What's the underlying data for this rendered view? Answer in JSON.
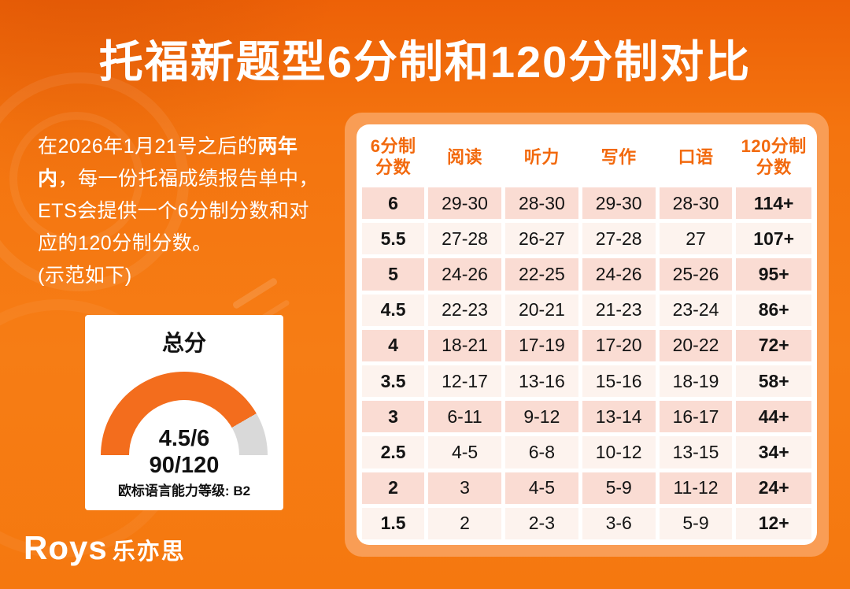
{
  "header": {
    "title": "托福新题型6分制和120分制对比"
  },
  "intro": {
    "part1": "在2026年1月21号之后的",
    "bold": "两年内",
    "part2": "，每一份托福成绩报告单中，ETS会提供一个6分制分数和对应的120分制分数。",
    "note": "(示范如下)"
  },
  "gauge": {
    "title": "总分",
    "score6": "4.5/6",
    "score120": "90/120",
    "cefr": "欧标语言能力等级: B2"
  },
  "table": {
    "columns": [
      "6分制\n分数",
      "阅读",
      "听力",
      "写作",
      "口语",
      "120分制\n分数"
    ],
    "rows": [
      [
        "6",
        "29-30",
        "28-30",
        "29-30",
        "28-30",
        "114+"
      ],
      [
        "5.5",
        "27-28",
        "26-27",
        "27-28",
        "27",
        "107+"
      ],
      [
        "5",
        "24-26",
        "22-25",
        "24-26",
        "25-26",
        "95+"
      ],
      [
        "4.5",
        "22-23",
        "20-21",
        "21-23",
        "23-24",
        "86+"
      ],
      [
        "4",
        "18-21",
        "17-19",
        "17-20",
        "20-22",
        "72+"
      ],
      [
        "3.5",
        "12-17",
        "13-16",
        "15-16",
        "18-19",
        "58+"
      ],
      [
        "3",
        "6-11",
        "9-12",
        "13-14",
        "16-17",
        "44+"
      ],
      [
        "2.5",
        "4-5",
        "6-8",
        "10-12",
        "13-15",
        "34+"
      ],
      [
        "2",
        "3",
        "4-5",
        "5-9",
        "11-12",
        "24+"
      ],
      [
        "1.5",
        "2",
        "2-3",
        "3-6",
        "5-9",
        "12+"
      ]
    ]
  },
  "logo": {
    "latin": "Roys",
    "chinese": "乐亦思"
  },
  "colors": {
    "background": "#f4740f",
    "accent": "#f2690d",
    "frame": "#f99d55",
    "pink": "#fadcd3",
    "cream": "#fdf3ee",
    "gauge_fill": "#f36d1d",
    "gauge_rest": "#d9d9d9"
  },
  "chart_data": [
    {
      "type": "table",
      "title": "托福新题型6分制和120分制对比",
      "columns": [
        "6分制分数",
        "阅读",
        "听力",
        "写作",
        "口语",
        "120分制分数"
      ],
      "rows": [
        [
          "6",
          "29-30",
          "28-30",
          "29-30",
          "28-30",
          "114+"
        ],
        [
          "5.5",
          "27-28",
          "26-27",
          "27-28",
          "27",
          "107+"
        ],
        [
          "5",
          "24-26",
          "22-25",
          "24-26",
          "25-26",
          "95+"
        ],
        [
          "4.5",
          "22-23",
          "20-21",
          "21-23",
          "23-24",
          "86+"
        ],
        [
          "4",
          "18-21",
          "17-19",
          "17-20",
          "20-22",
          "72+"
        ],
        [
          "3.5",
          "12-17",
          "13-16",
          "15-16",
          "18-19",
          "58+"
        ],
        [
          "3",
          "6-11",
          "9-12",
          "13-14",
          "16-17",
          "44+"
        ],
        [
          "2.5",
          "4-5",
          "6-8",
          "10-12",
          "13-15",
          "34+"
        ],
        [
          "2",
          "3",
          "4-5",
          "5-9",
          "11-12",
          "24+"
        ],
        [
          "1.5",
          "2",
          "2-3",
          "3-6",
          "5-9",
          "12+"
        ]
      ]
    },
    {
      "type": "gauge",
      "title": "总分",
      "value_6scale": 4.5,
      "max_6scale": 6,
      "value_120scale": 90,
      "max_120scale": 120,
      "cefr_level": "B2",
      "fill_fraction_shown": 0.83
    }
  ]
}
